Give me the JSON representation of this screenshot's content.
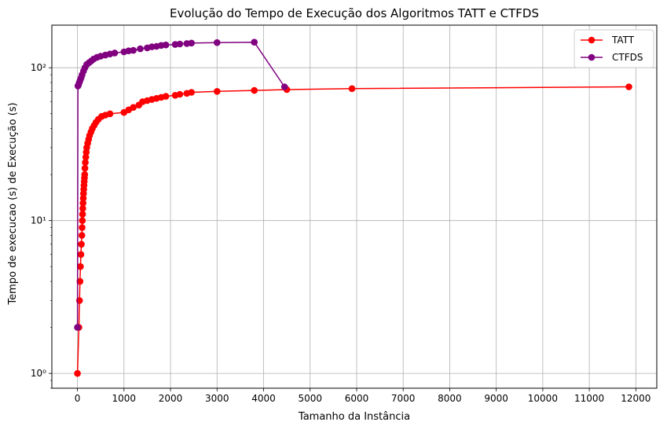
{
  "chart_data": {
    "type": "line",
    "title": "Evolução do Tempo de Execução dos Algoritmos TATT e CTFDS",
    "xlabel": "Tamanho da Instância",
    "ylabel": "Tempo de execucao (s) de Execução (s)",
    "y_scale": "log",
    "xlim": [
      -550,
      12450
    ],
    "ylim": [
      0.8,
      190
    ],
    "x_ticks": [
      0,
      1000,
      2000,
      3000,
      4000,
      5000,
      6000,
      7000,
      8000,
      9000,
      10000,
      11000,
      12000
    ],
    "x_tick_labels": [
      "0",
      "1000",
      "2000",
      "3000",
      "4000",
      "5000",
      "6000",
      "7000",
      "8000",
      "9000",
      "10000",
      "11000",
      "12000"
    ],
    "y_ticks": [
      1,
      10,
      100
    ],
    "y_tick_labels": [
      "10⁰",
      "10¹",
      "10²"
    ],
    "grid": true,
    "legend_position": "top-right",
    "series": [
      {
        "name": "TATT",
        "color": "#ff0000",
        "points": [
          [
            0,
            1
          ],
          [
            30,
            2
          ],
          [
            45,
            3
          ],
          [
            55,
            4
          ],
          [
            65,
            5
          ],
          [
            75,
            6
          ],
          [
            85,
            7
          ],
          [
            95,
            8
          ],
          [
            100,
            9
          ],
          [
            105,
            10
          ],
          [
            110,
            11
          ],
          [
            115,
            12
          ],
          [
            120,
            13
          ],
          [
            125,
            14
          ],
          [
            130,
            15
          ],
          [
            135,
            16
          ],
          [
            140,
            17
          ],
          [
            145,
            18
          ],
          [
            150,
            19
          ],
          [
            155,
            20
          ],
          [
            160,
            22
          ],
          [
            170,
            24
          ],
          [
            180,
            26
          ],
          [
            190,
            28
          ],
          [
            200,
            30
          ],
          [
            220,
            32
          ],
          [
            240,
            34
          ],
          [
            260,
            36
          ],
          [
            290,
            38
          ],
          [
            320,
            40
          ],
          [
            360,
            42
          ],
          [
            400,
            44
          ],
          [
            450,
            46
          ],
          [
            520,
            48
          ],
          [
            600,
            49
          ],
          [
            700,
            50
          ],
          [
            1000,
            51
          ],
          [
            1100,
            53
          ],
          [
            1200,
            55
          ],
          [
            1320,
            57
          ],
          [
            1400,
            60
          ],
          [
            1500,
            61
          ],
          [
            1600,
            62
          ],
          [
            1700,
            63
          ],
          [
            1800,
            64
          ],
          [
            1900,
            65
          ],
          [
            2100,
            66
          ],
          [
            2200,
            67
          ],
          [
            2350,
            68
          ],
          [
            2450,
            69
          ],
          [
            3000,
            70
          ],
          [
            3800,
            71
          ],
          [
            4500,
            72
          ],
          [
            5900,
            73
          ],
          [
            11850,
            75
          ]
        ]
      },
      {
        "name": "CTFDS",
        "color": "#800080",
        "points": [
          [
            0,
            2
          ],
          [
            10,
            76
          ],
          [
            20,
            77
          ],
          [
            40,
            80
          ],
          [
            60,
            83
          ],
          [
            80,
            86
          ],
          [
            100,
            90
          ],
          [
            130,
            95
          ],
          [
            160,
            100
          ],
          [
            200,
            105
          ],
          [
            250,
            108
          ],
          [
            300,
            111
          ],
          [
            350,
            114
          ],
          [
            420,
            117
          ],
          [
            500,
            119
          ],
          [
            600,
            121
          ],
          [
            700,
            123
          ],
          [
            800,
            125
          ],
          [
            1000,
            127
          ],
          [
            1100,
            129
          ],
          [
            1200,
            130
          ],
          [
            1350,
            133
          ],
          [
            1500,
            135
          ],
          [
            1600,
            137
          ],
          [
            1700,
            138
          ],
          [
            1800,
            140
          ],
          [
            1900,
            141
          ],
          [
            2100,
            142
          ],
          [
            2200,
            143
          ],
          [
            2350,
            144
          ],
          [
            2450,
            145
          ],
          [
            3000,
            146
          ],
          [
            3800,
            147
          ],
          [
            4450,
            75
          ]
        ]
      }
    ]
  }
}
